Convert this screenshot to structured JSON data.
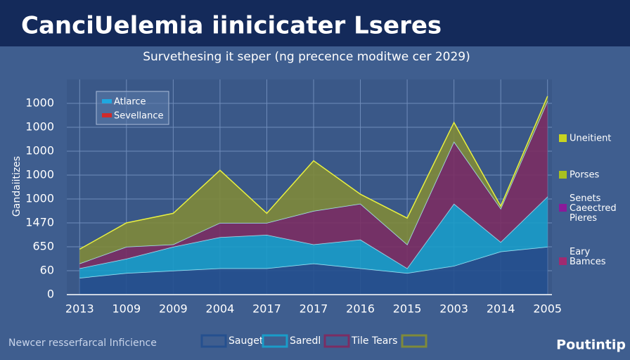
{
  "chart_data": {
    "type": "stacked_area",
    "title": "CanciUelemia iinicicater Lseres",
    "subtitle": "Survethesing it seper (ng precence moditwe cer 2029)",
    "y_axis_label": "Gandaiitizes",
    "categories": [
      "2013",
      "1009",
      "2009",
      "2004",
      "2017",
      "2017",
      "2016",
      "2015",
      "2003",
      "2014",
      "2005"
    ],
    "series": [
      {
        "name": "Sauget",
        "color": "#25508f",
        "values": [
          0.7,
          0.9,
          1.0,
          1.1,
          1.1,
          1.3,
          1.1,
          0.9,
          1.2,
          1.8,
          2.0
        ]
      },
      {
        "name": "Saredl",
        "color": "#1a9cc9",
        "values": [
          0.4,
          0.6,
          1.0,
          1.3,
          1.4,
          0.8,
          1.2,
          0.2,
          2.6,
          0.4,
          2.1
        ]
      },
      {
        "name": "Tile Tears",
        "color": "#7b2d63",
        "values": [
          0.2,
          0.5,
          0.1,
          0.6,
          0.5,
          1.4,
          1.5,
          1.0,
          2.6,
          1.4,
          4.0
        ]
      },
      {
        "color": "#7f8a3a",
        "values": [
          0.6,
          1.0,
          1.3,
          2.2,
          0.4,
          2.1,
          0.4,
          1.1,
          0.8,
          0.1,
          0.2
        ]
      }
    ],
    "ylim": [
      0,
      9
    ],
    "yticks": [
      0,
      1,
      2,
      3,
      4,
      5,
      6,
      7,
      8
    ],
    "y_tick_labels": [
      "0",
      "60",
      "650",
      "1470",
      "1000",
      "1000",
      "1000",
      "1000",
      "1000"
    ],
    "grid": true,
    "inset_legend": [
      {
        "text": "Atlarce",
        "color": "#1fa8e0"
      },
      {
        "text": "Sevellance",
        "color": "#d02a2a"
      }
    ],
    "side_labels": [
      {
        "text": "Uneitient",
        "color": "#c8d420"
      },
      {
        "text": "Porses",
        "color": "#a8c020"
      },
      {
        "text": "Senets Caeectred Pieres",
        "color": "#8a1a9a"
      },
      {
        "text": "Eary Bamces",
        "color": "#a02a70"
      }
    ],
    "footer_left": "Newcer resserfarcal Inficience",
    "footer_right": "Poutintip"
  }
}
